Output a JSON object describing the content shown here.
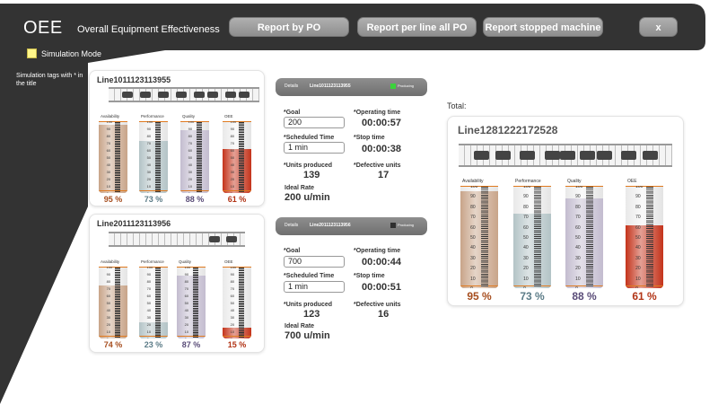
{
  "header": {
    "app_title": "OEE",
    "app_subtitle": "Overall Equipment Effectiveness",
    "buttons": {
      "report_by_po": "Report by PO",
      "report_per_line": "Report per line all PO",
      "report_stopped": "Report stopped machine",
      "close": "x"
    }
  },
  "sidebar": {
    "simulation_mode_label": "Simulation Mode",
    "simulation_note": "Simulation tags with * in the title"
  },
  "colors": {
    "availability": "#c8a489",
    "performance": "#b3c3c6",
    "quality": "#c3bccf",
    "oee": "#c4331b",
    "availability_text": "#a64d1e",
    "performance_text": "#5b7b87",
    "quality_text": "#5a4c78",
    "oee_text": "#b23416",
    "dark_panel": "#333333"
  },
  "meter_labels": {
    "availability": "Availability",
    "performance": "Performance",
    "quality": "Quality",
    "oee": "OEE"
  },
  "scale_ticks": [
    "100",
    "90",
    "80",
    "70",
    "60",
    "50",
    "40",
    "30",
    "20",
    "10",
    "0"
  ],
  "lines": [
    {
      "name": "Line1011123113955",
      "metrics": {
        "availability": {
          "value": 95,
          "text": "95 %"
        },
        "performance": {
          "value": 73,
          "text": "73 %"
        },
        "quality": {
          "value": 88,
          "text": "88 %"
        },
        "oee": {
          "value": 61,
          "text": "61 %"
        }
      },
      "details": {
        "header_label": "Details",
        "header_line": "Line1011123113955",
        "status_text": "Producing",
        "status_color": "#3bd23b",
        "goal_label": "*Goal",
        "goal_value": "200",
        "scheduled_label": "*Scheduled Time",
        "scheduled_value": "1 min",
        "units_label": "*Units produced",
        "units_value": "139",
        "ideal_label": "Ideal Rate",
        "ideal_value": "200 u/min",
        "op_time_label": "*Operating time",
        "op_time_value": "00:00:57",
        "stop_time_label": "*Stop time",
        "stop_time_value": "00:00:38",
        "defective_label": "*Defective units",
        "defective_value": "17"
      }
    },
    {
      "name": "Line2011123113956",
      "metrics": {
        "availability": {
          "value": 74,
          "text": "74 %"
        },
        "performance": {
          "value": 23,
          "text": "23 %"
        },
        "quality": {
          "value": 87,
          "text": "87 %"
        },
        "oee": {
          "value": 15,
          "text": "15 %"
        }
      },
      "details": {
        "header_label": "Details",
        "header_line": "Line2011123113956",
        "status_text": "Producing",
        "status_color": "#2f2f2f",
        "goal_label": "*Goal",
        "goal_value": "700",
        "scheduled_label": "*Scheduled Time",
        "scheduled_value": "1 min",
        "units_label": "*Units produced",
        "units_value": "123",
        "ideal_label": "Ideal Rate",
        "ideal_value": "700 u/min",
        "op_time_label": "*Operating time",
        "op_time_value": "00:00:44",
        "stop_time_label": "*Stop time",
        "stop_time_value": "00:00:51",
        "defective_label": "*Defective units",
        "defective_value": "16"
      }
    }
  ],
  "total": {
    "label": "Total:",
    "name": "Line1281222172528",
    "metrics": {
      "availability": {
        "value": 95,
        "text": "95 %"
      },
      "performance": {
        "value": 73,
        "text": "73 %"
      },
      "quality": {
        "value": 88,
        "text": "88 %"
      },
      "oee": {
        "value": 61,
        "text": "61 %"
      }
    }
  }
}
